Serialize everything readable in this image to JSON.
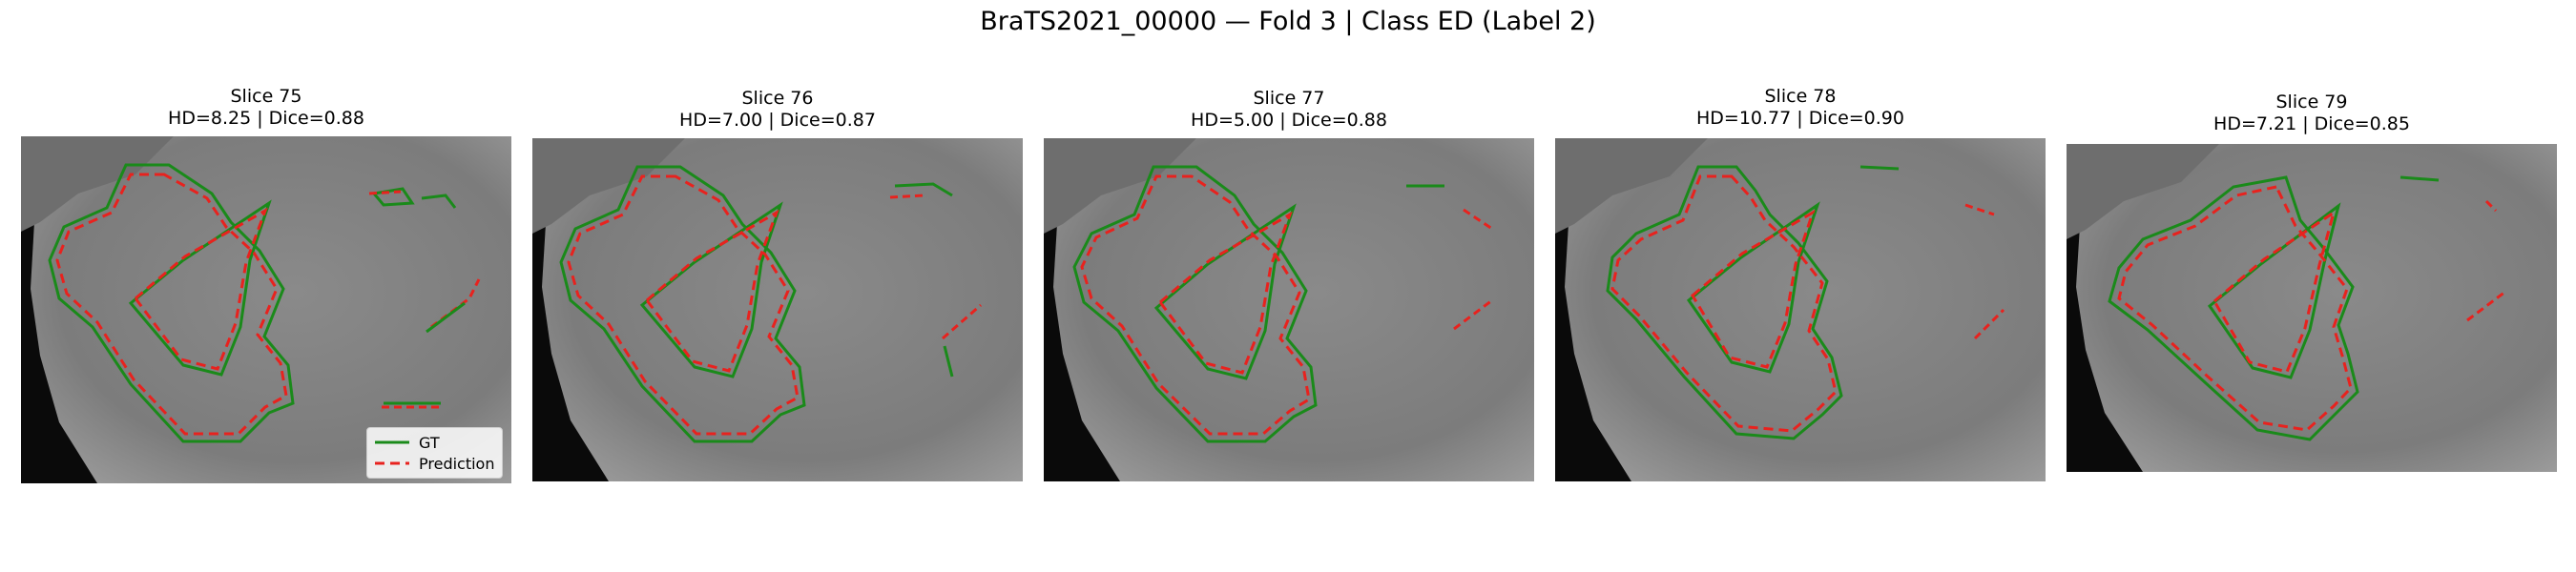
{
  "figure": {
    "title": "BraTS2021_00000 — Fold 3 | Class ED (Label 2)"
  },
  "panels": [
    {
      "slice": "Slice 75",
      "metrics": "HD=8.25 | Dice=0.88"
    },
    {
      "slice": "Slice 76",
      "metrics": "HD=7.00 | Dice=0.87"
    },
    {
      "slice": "Slice 77",
      "metrics": "HD=5.00 | Dice=0.88"
    },
    {
      "slice": "Slice 78",
      "metrics": "HD=10.77 | Dice=0.90"
    },
    {
      "slice": "Slice 79",
      "metrics": "HD=7.21 | Dice=0.85"
    }
  ],
  "legend": {
    "gt_label": "GT",
    "pred_label": "Prediction"
  },
  "colors": {
    "gt": "#1a8a1a",
    "prediction": "#e8221e",
    "background": "#ffffff"
  }
}
